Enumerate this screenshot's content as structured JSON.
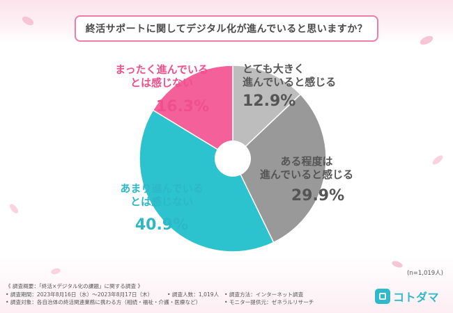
{
  "title": "終活サポートに関してデジタル化が進んでいると思いますか？",
  "chart_data": {
    "type": "pie",
    "title": "終活サポートに関してデジタル化が進んでいると思いますか？",
    "unit": "%",
    "slices": [
      {
        "label": "とても大きく進んでいると感じる",
        "value": 12.9,
        "value_label": "12.9%",
        "color": "#bdbdbd",
        "label_lines": [
          "とても大きく",
          "進んでいると感じる"
        ],
        "text_color": "#555555"
      },
      {
        "label": "ある程度は進んでいると感じる",
        "value": 29.9,
        "value_label": "29.9%",
        "color": "#999999",
        "label_lines": [
          "ある程度は",
          "進んでいると感じる"
        ],
        "text_color": "#555555"
      },
      {
        "label": "あまり進んでいるとは感じない",
        "value": 40.9,
        "value_label": "40.9%",
        "color": "#2cc3cf",
        "label_lines": [
          "あまり進んでいる",
          "とは感じない"
        ],
        "text_color": "#2cb8c6"
      },
      {
        "label": "まったく進んでいるとは感じない",
        "value": 16.3,
        "value_label": "16.3%",
        "color": "#f4619a",
        "label_lines": [
          "まったく進んでいる",
          "とは感じない"
        ],
        "text_color": "#ef4f8d"
      }
    ],
    "sample_size": "(n=1,019人)"
  },
  "notes": {
    "heading": "《 調査概要：「終活×デジタル化の課題」に関する調査 》",
    "period": "• 調査期間：2023年8月16日（水）〜2023年8月17日（木）",
    "count": "• 調査人数：1,019人",
    "method": "• 調査方法：インターネット調査",
    "target": "• 調査対象：各自治体の終活関連業務に携わる方（相続・福祉・介護・医療など）",
    "provider": "• モニター提供元：ゼネラルリサーチ"
  },
  "logo": {
    "text": "コトダマ"
  }
}
